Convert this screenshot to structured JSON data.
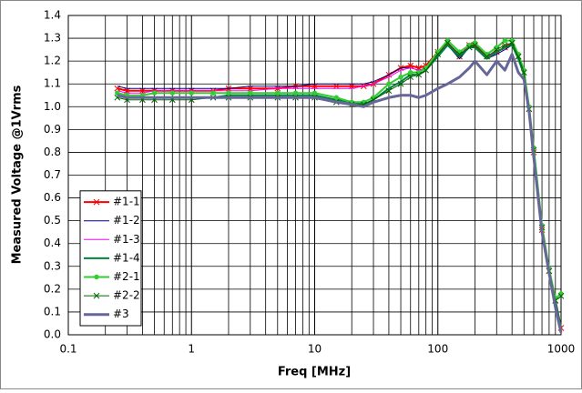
{
  "chart_data": {
    "type": "line",
    "x_label": "Freq [MHz]",
    "y_label": "Measured Voltage @1Vrms",
    "x_log": true,
    "grid": true,
    "legend_position": "lower left",
    "xlim": [
      0.1,
      1000
    ],
    "xticks": [
      0.1,
      1,
      10,
      100,
      1000
    ],
    "ylim": [
      0,
      1.4
    ],
    "yticks": [
      {
        "value": 0,
        "label": "0.0"
      },
      0.1,
      0.2,
      0.3,
      0.4,
      0.5,
      0.6,
      0.7,
      0.8,
      0.9,
      {
        "value": 1,
        "label": "1.0"
      },
      1.1,
      1.2,
      1.3,
      1.4
    ],
    "x": [
      0.25,
      0.3,
      0.4,
      0.5,
      0.7,
      1,
      1.5,
      2,
      3,
      5,
      7,
      10,
      15,
      20,
      25,
      30,
      40,
      50,
      60,
      70,
      80,
      100,
      120,
      150,
      180,
      200,
      250,
      300,
      350,
      400,
      450,
      500,
      550,
      600,
      700,
      800,
      900,
      1000
    ],
    "series": [
      {
        "name": "#1-1",
        "color": "#ff0000",
        "marker": "x",
        "width": 2,
        "values": [
          1.08,
          1.07,
          1.07,
          1.07,
          1.07,
          1.07,
          1.07,
          1.08,
          1.08,
          1.08,
          1.09,
          1.09,
          1.09,
          1.09,
          1.09,
          1.1,
          1.14,
          1.17,
          1.18,
          1.17,
          1.18,
          1.24,
          1.28,
          1.22,
          1.27,
          1.27,
          1.22,
          1.24,
          1.26,
          1.28,
          1.22,
          1.15,
          0.99,
          0.8,
          0.46,
          0.28,
          0.15,
          0.03
        ]
      },
      {
        "name": "#1-2",
        "color": "#000080",
        "marker": "none",
        "width": 1,
        "values": [
          1.09,
          1.08,
          1.08,
          1.08,
          1.08,
          1.08,
          1.08,
          1.08,
          1.09,
          1.09,
          1.09,
          1.1,
          1.1,
          1.1,
          1.1,
          1.11,
          1.14,
          1.17,
          1.17,
          1.16,
          1.17,
          1.23,
          1.27,
          1.21,
          1.26,
          1.26,
          1.21,
          1.23,
          1.25,
          1.27,
          1.21,
          1.14,
          0.98,
          0.79,
          0.45,
          0.27,
          0.14,
          0.02
        ]
      },
      {
        "name": "#1-3",
        "color": "#ff00ff",
        "marker": "none",
        "width": 1,
        "values": [
          1.07,
          1.06,
          1.06,
          1.07,
          1.07,
          1.07,
          1.07,
          1.07,
          1.07,
          1.08,
          1.08,
          1.08,
          1.08,
          1.08,
          1.09,
          1.1,
          1.13,
          1.16,
          1.17,
          1.16,
          1.17,
          1.23,
          1.27,
          1.22,
          1.27,
          1.26,
          1.22,
          1.24,
          1.26,
          1.27,
          1.21,
          1.14,
          0.98,
          0.8,
          0.46,
          0.28,
          0.15,
          0.03
        ]
      },
      {
        "name": "#1-4",
        "color": "#008040",
        "marker": "none",
        "width": 2,
        "values": [
          1.05,
          1.04,
          1.04,
          1.04,
          1.04,
          1.04,
          1.04,
          1.05,
          1.05,
          1.05,
          1.05,
          1.05,
          1.03,
          1.02,
          1.01,
          1.03,
          1.08,
          1.11,
          1.14,
          1.14,
          1.16,
          1.22,
          1.27,
          1.22,
          1.26,
          1.26,
          1.21,
          1.24,
          1.26,
          1.27,
          1.21,
          1.14,
          0.98,
          0.8,
          0.46,
          0.28,
          0.15,
          0.03
        ]
      },
      {
        "name": "#2-1",
        "color": "#33cc33",
        "marker": "circle",
        "width": 2,
        "values": [
          1.06,
          1.05,
          1.05,
          1.06,
          1.06,
          1.06,
          1.06,
          1.06,
          1.06,
          1.06,
          1.06,
          1.06,
          1.04,
          1.02,
          1.02,
          1.04,
          1.1,
          1.13,
          1.15,
          1.15,
          1.17,
          1.24,
          1.29,
          1.24,
          1.27,
          1.28,
          1.23,
          1.26,
          1.29,
          1.29,
          1.23,
          1.16,
          1.0,
          0.82,
          0.48,
          0.29,
          0.16,
          0.18
        ]
      },
      {
        "name": "#2-2",
        "color": "#006600",
        "marker": "x",
        "width": 1,
        "values": [
          1.04,
          1.03,
          1.03,
          1.03,
          1.03,
          1.03,
          1.04,
          1.04,
          1.04,
          1.04,
          1.04,
          1.04,
          1.02,
          1.01,
          1.01,
          1.03,
          1.07,
          1.1,
          1.13,
          1.14,
          1.16,
          1.23,
          1.28,
          1.23,
          1.26,
          1.27,
          1.22,
          1.25,
          1.27,
          1.28,
          1.22,
          1.15,
          0.99,
          0.81,
          0.47,
          0.28,
          0.15,
          0.17
        ]
      },
      {
        "name": "#3",
        "color": "#666699",
        "marker": "none",
        "width": 3,
        "values": [
          1.05,
          1.04,
          1.04,
          1.04,
          1.04,
          1.04,
          1.04,
          1.04,
          1.04,
          1.04,
          1.04,
          1.04,
          1.02,
          1.01,
          1.0,
          1.02,
          1.04,
          1.05,
          1.05,
          1.04,
          1.05,
          1.08,
          1.1,
          1.13,
          1.17,
          1.2,
          1.14,
          1.2,
          1.16,
          1.23,
          1.15,
          1.12,
          0.98,
          0.78,
          0.45,
          0.27,
          0.12,
          0.01
        ]
      }
    ]
  }
}
